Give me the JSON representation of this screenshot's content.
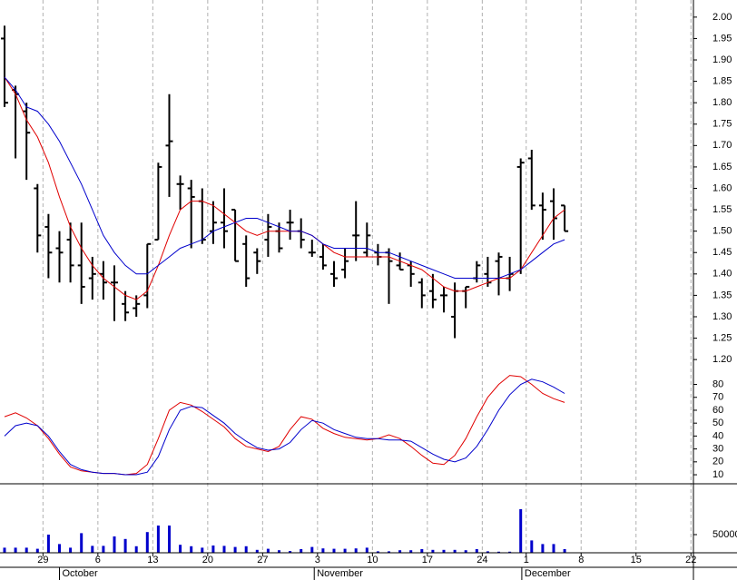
{
  "chart_data": [
    {
      "type": "ohlc",
      "color": "#000000",
      "open": [
        1.95,
        1.83,
        1.78,
        1.6,
        1.51,
        1.46,
        1.48,
        1.42,
        1.39,
        1.4,
        1.38,
        1.33,
        1.32,
        1.35,
        1.48,
        1.7,
        1.61,
        1.6,
        1.57,
        1.5,
        1.52,
        1.55,
        1.47,
        1.45,
        1.48,
        1.5,
        1.52,
        1.5,
        1.45,
        1.44,
        1.4,
        1.41,
        1.49,
        1.45,
        1.45,
        1.45,
        1.42,
        1.42,
        1.38,
        1.36,
        1.35,
        1.3,
        1.36,
        1.39,
        1.4,
        1.43,
        1.39,
        1.65,
        1.67,
        1.56,
        1.57,
        1.56
      ],
      "high": [
        1.98,
        1.84,
        1.8,
        1.61,
        1.54,
        1.5,
        1.52,
        1.52,
        1.44,
        1.43,
        1.42,
        1.36,
        1.35,
        1.47,
        1.66,
        1.82,
        1.63,
        1.62,
        1.6,
        1.57,
        1.6,
        1.55,
        1.49,
        1.46,
        1.54,
        1.52,
        1.55,
        1.53,
        1.48,
        1.47,
        1.43,
        1.46,
        1.57,
        1.52,
        1.47,
        1.46,
        1.45,
        1.43,
        1.39,
        1.4,
        1.37,
        1.38,
        1.37,
        1.43,
        1.44,
        1.45,
        1.44,
        1.67,
        1.69,
        1.59,
        1.6,
        1.56
      ],
      "low": [
        1.79,
        1.67,
        1.62,
        1.45,
        1.39,
        1.38,
        1.38,
        1.33,
        1.34,
        1.34,
        1.29,
        1.29,
        1.3,
        1.32,
        1.48,
        1.58,
        1.55,
        1.46,
        1.47,
        1.47,
        1.46,
        1.43,
        1.37,
        1.4,
        1.44,
        1.45,
        1.48,
        1.46,
        1.44,
        1.41,
        1.37,
        1.39,
        1.43,
        1.44,
        1.42,
        1.33,
        1.41,
        1.37,
        1.32,
        1.32,
        1.31,
        1.25,
        1.32,
        1.38,
        1.37,
        1.35,
        1.36,
        1.4,
        1.55,
        1.48,
        1.48,
        1.5
      ],
      "close": [
        1.8,
        1.82,
        1.73,
        1.49,
        1.45,
        1.45,
        1.42,
        1.37,
        1.4,
        1.38,
        1.38,
        1.31,
        1.33,
        1.47,
        1.65,
        1.71,
        1.61,
        1.58,
        1.48,
        1.52,
        1.5,
        1.43,
        1.39,
        1.43,
        1.51,
        1.46,
        1.52,
        1.48,
        1.45,
        1.42,
        1.39,
        1.43,
        1.49,
        1.49,
        1.44,
        1.43,
        1.41,
        1.4,
        1.35,
        1.34,
        1.35,
        1.36,
        1.37,
        1.42,
        1.38,
        1.44,
        1.4,
        1.66,
        1.56,
        1.55,
        1.53,
        1.5
      ],
      "lines": [
        {
          "color": "#e00000",
          "values": [
            1.86,
            1.82,
            1.76,
            1.72,
            1.66,
            1.58,
            1.51,
            1.46,
            1.42,
            1.39,
            1.37,
            1.35,
            1.34,
            1.36,
            1.42,
            1.49,
            1.55,
            1.57,
            1.57,
            1.56,
            1.54,
            1.52,
            1.5,
            1.49,
            1.5,
            1.5,
            1.5,
            1.5,
            1.49,
            1.47,
            1.45,
            1.44,
            1.44,
            1.44,
            1.44,
            1.44,
            1.43,
            1.42,
            1.41,
            1.39,
            1.37,
            1.36,
            1.36,
            1.37,
            1.38,
            1.39,
            1.39,
            1.41,
            1.45,
            1.49,
            1.53,
            1.55
          ]
        },
        {
          "color": "#0000cc",
          "values": [
            1.86,
            1.83,
            1.79,
            1.78,
            1.75,
            1.71,
            1.66,
            1.61,
            1.55,
            1.49,
            1.45,
            1.42,
            1.4,
            1.4,
            1.42,
            1.44,
            1.46,
            1.47,
            1.48,
            1.5,
            1.51,
            1.52,
            1.53,
            1.53,
            1.52,
            1.51,
            1.5,
            1.5,
            1.49,
            1.47,
            1.46,
            1.46,
            1.46,
            1.46,
            1.45,
            1.45,
            1.44,
            1.43,
            1.42,
            1.41,
            1.4,
            1.39,
            1.39,
            1.39,
            1.39,
            1.39,
            1.4,
            1.41,
            1.43,
            1.45,
            1.47,
            1.48
          ]
        }
      ],
      "ylim": [
        1.16,
        2.04
      ],
      "yticks": [
        {
          "value": 1.2,
          "label": "1.20"
        },
        {
          "value": 1.25,
          "label": "1.25"
        },
        {
          "value": 1.3,
          "label": "1.30"
        },
        {
          "value": 1.35,
          "label": "1.35"
        },
        {
          "value": 1.4,
          "label": "1.40"
        },
        {
          "value": 1.45,
          "label": "1.45"
        },
        {
          "value": 1.5,
          "label": "1.50"
        },
        {
          "value": 1.55,
          "label": "1.55"
        },
        {
          "value": 1.6,
          "label": "1.60"
        },
        {
          "value": 1.65,
          "label": "1.65"
        },
        {
          "value": 1.7,
          "label": "1.70"
        },
        {
          "value": 1.75,
          "label": "1.75"
        },
        {
          "value": 1.8,
          "label": "1.80"
        },
        {
          "value": 1.85,
          "label": "1.85"
        },
        {
          "value": 1.9,
          "label": "1.90"
        },
        {
          "value": 1.95,
          "label": "1.95"
        },
        {
          "value": 2.0,
          "label": "2.00"
        }
      ]
    },
    {
      "type": "line",
      "lines": [
        {
          "color": "#e00000",
          "values": [
            55,
            58,
            54,
            48,
            38,
            26,
            16,
            13,
            12,
            11,
            11,
            10,
            11,
            18,
            38,
            60,
            66,
            64,
            59,
            53,
            47,
            38,
            32,
            30,
            28,
            32,
            45,
            55,
            53,
            46,
            42,
            39,
            38,
            37,
            38,
            41,
            38,
            32,
            25,
            19,
            18,
            25,
            38,
            55,
            70,
            80,
            87,
            86,
            80,
            73,
            69,
            66
          ]
        },
        {
          "color": "#0000cc",
          "values": [
            40,
            48,
            50,
            48,
            40,
            28,
            18,
            14,
            12,
            11,
            11,
            10,
            10,
            12,
            24,
            45,
            60,
            63,
            62,
            56,
            50,
            42,
            36,
            31,
            29,
            30,
            35,
            45,
            52,
            50,
            45,
            42,
            39,
            38,
            38,
            37,
            37,
            36,
            31,
            26,
            22,
            20,
            23,
            32,
            45,
            60,
            72,
            80,
            84,
            82,
            78,
            73
          ]
        }
      ],
      "ylim": [
        3,
        86
      ],
      "yticks": [
        10,
        20,
        30,
        40,
        50,
        60,
        70,
        80
      ]
    },
    {
      "type": "bar",
      "color": "#0000cc",
      "values": [
        14000,
        14000,
        14000,
        11000,
        50000,
        24000,
        14000,
        54000,
        19000,
        19000,
        45000,
        38000,
        18000,
        57000,
        75000,
        75000,
        22000,
        18000,
        14000,
        20000,
        19000,
        16000,
        18000,
        8000,
        11000,
        7000,
        5000,
        10000,
        16000,
        12000,
        11000,
        11000,
        12000,
        14000,
        4000,
        4000,
        7000,
        7000,
        10000,
        8000,
        8000,
        8000,
        7000,
        10000,
        4000,
        3000,
        3000,
        120000,
        34000,
        24000,
        24000,
        10000
      ],
      "ylim": [
        0,
        190000
      ],
      "yticks": [
        50000
      ],
      "grid": true,
      "xticks": [
        {
          "value": 3.5,
          "label": "29"
        },
        {
          "value": 8.5,
          "label": "6"
        },
        {
          "value": 13.5,
          "label": "13"
        },
        {
          "value": 18.5,
          "label": "20"
        },
        {
          "value": 23.5,
          "label": "27"
        },
        {
          "value": 28.5,
          "label": "3"
        },
        {
          "value": 33.5,
          "label": "10"
        },
        {
          "value": 38.5,
          "label": "17"
        },
        {
          "value": 43.5,
          "label": "24"
        },
        {
          "value": 47.5,
          "label": "1"
        },
        {
          "value": 52.5,
          "label": "8"
        },
        {
          "value": 57.5,
          "label": "15"
        },
        {
          "value": 62.5,
          "label": "22"
        }
      ],
      "month_labels": [
        {
          "value": 5,
          "label": "October"
        },
        {
          "value": 28.2,
          "label": "November"
        },
        {
          "value": 47.1,
          "label": "December"
        }
      ]
    }
  ]
}
